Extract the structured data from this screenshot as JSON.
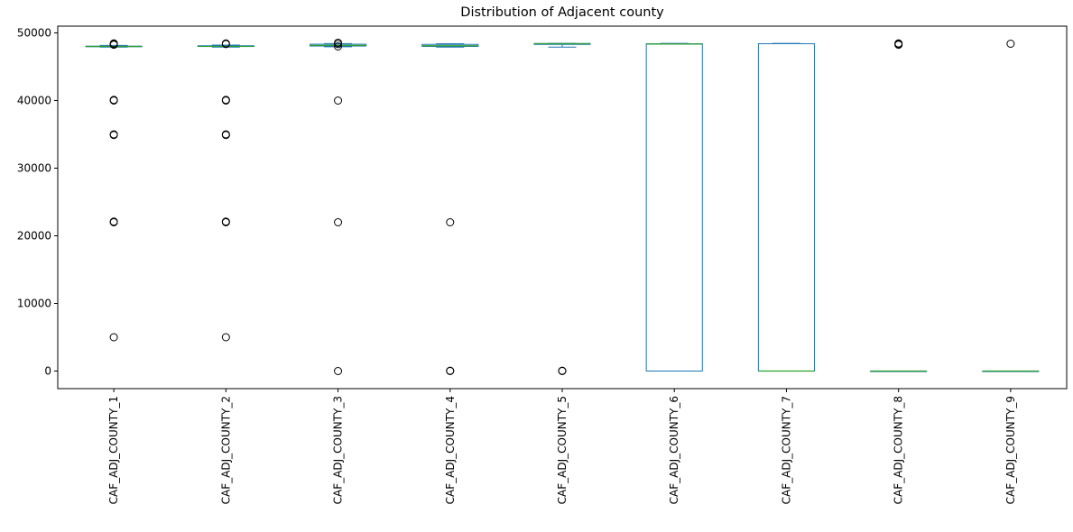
{
  "chart_data": {
    "type": "box",
    "title": "Distribution of Adjacent county",
    "xlabel": "",
    "ylabel": "",
    "ylim": [
      -2600,
      51000
    ],
    "yticks": [
      0,
      10000,
      20000,
      30000,
      40000,
      50000
    ],
    "grid": false,
    "colors": {
      "box": "#1f77b4",
      "median": "#2ca02c",
      "flier": "#000000"
    },
    "categories": [
      "CAF_ADJ_COUNTY_1",
      "CAF_ADJ_COUNTY_2",
      "CAF_ADJ_COUNTY_3",
      "CAF_ADJ_COUNTY_4",
      "CAF_ADJ_COUNTY_5",
      "CAF_ADJ_COUNTY_6",
      "CAF_ADJ_COUNTY_7",
      "CAF_ADJ_COUNTY_8",
      "CAF_ADJ_COUNTY_9"
    ],
    "boxes": [
      {
        "whisker_low": 47900,
        "q1": 47980,
        "median": 48000,
        "q3": 48040,
        "whisker_high": 48150,
        "fliers": [
          48250,
          48350,
          48450,
          40100,
          40000,
          35000,
          34900,
          22100,
          22000,
          5000
        ]
      },
      {
        "whisker_low": 47900,
        "q1": 47990,
        "median": 48010,
        "q3": 48100,
        "whisker_high": 48200,
        "fliers": [
          48350,
          48450,
          40100,
          40000,
          35000,
          34900,
          22100,
          22000,
          5000
        ]
      },
      {
        "whisker_low": 47950,
        "q1": 48060,
        "median": 48150,
        "q3": 48330,
        "whisker_high": 48420,
        "fliers": [
          48550,
          48350,
          48000,
          40000,
          22000,
          0
        ]
      },
      {
        "whisker_low": 47900,
        "q1": 48000,
        "median": 48100,
        "q3": 48300,
        "whisker_high": 48400,
        "fliers": [
          22000,
          50,
          0
        ]
      },
      {
        "whisker_low": 47900,
        "q1": 48300,
        "median": 48400,
        "q3": 48430,
        "whisker_high": 48450,
        "fliers": [
          50,
          0
        ]
      },
      {
        "whisker_low": 0,
        "q1": 0,
        "median": 48350,
        "q3": 48400,
        "whisker_high": 48450,
        "fliers": []
      },
      {
        "whisker_low": 0,
        "q1": 0,
        "median": 0,
        "q3": 48400,
        "whisker_high": 48450,
        "fliers": []
      },
      {
        "whisker_low": 0,
        "q1": 0,
        "median": 0,
        "q3": 0,
        "whisker_high": 0,
        "fliers": [
          48250,
          48350,
          48450
        ]
      },
      {
        "whisker_low": 0,
        "q1": 0,
        "median": 0,
        "q3": 0,
        "whisker_high": 0,
        "fliers": [
          48400
        ]
      }
    ]
  }
}
